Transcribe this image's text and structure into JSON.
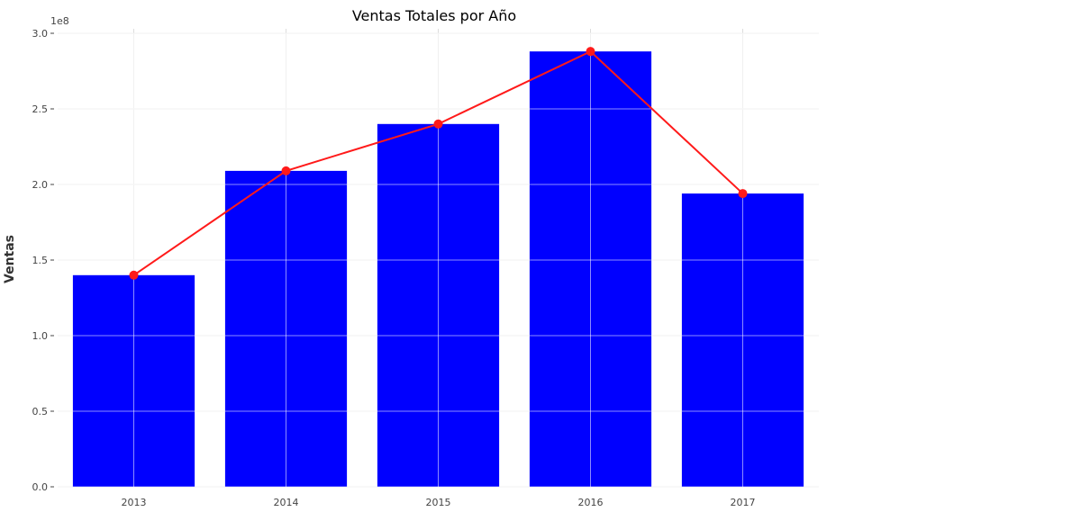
{
  "chart_data": {
    "type": "bar",
    "title": "Ventas Totales por Año",
    "xlabel": "",
    "ylabel": "Ventas",
    "y_offset_label": "1e8",
    "categories": [
      "2013",
      "2014",
      "2015",
      "2016",
      "2017"
    ],
    "series": [
      {
        "type": "bar",
        "color": "#0000ff",
        "values": [
          1.4,
          2.09,
          2.4,
          2.88,
          1.94
        ]
      },
      {
        "type": "line",
        "color": "#ff1a1a",
        "marker": "circle",
        "values": [
          1.4,
          2.09,
          2.4,
          2.88,
          1.94
        ]
      }
    ],
    "y_scale_multiplier": 100000000,
    "ylim": [
      0,
      3.0
    ],
    "yticks": [
      "0.0",
      "0.5",
      "1.0",
      "1.5",
      "2.0",
      "2.5",
      "3.0"
    ],
    "grid": true,
    "legend": "none"
  }
}
